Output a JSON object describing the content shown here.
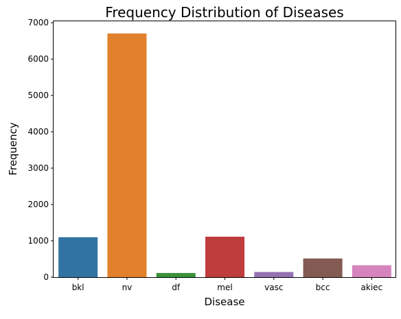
{
  "chart_data": {
    "type": "bar",
    "title": "Frequency Distribution of Diseases",
    "xlabel": "Disease",
    "ylabel": "Frequency",
    "categories": [
      "bkl",
      "nv",
      "df",
      "mel",
      "vasc",
      "bcc",
      "akiec"
    ],
    "values": [
      1099,
      6705,
      115,
      1113,
      142,
      514,
      327
    ],
    "ylim": [
      0,
      7040
    ],
    "yticks": [
      0,
      1000,
      2000,
      3000,
      4000,
      5000,
      6000,
      7000
    ],
    "colors": [
      "#3274a1",
      "#e1812c",
      "#3a923a",
      "#c03d3e",
      "#9372b2",
      "#845b53",
      "#d684bd"
    ],
    "grid": false,
    "legend": "none"
  }
}
